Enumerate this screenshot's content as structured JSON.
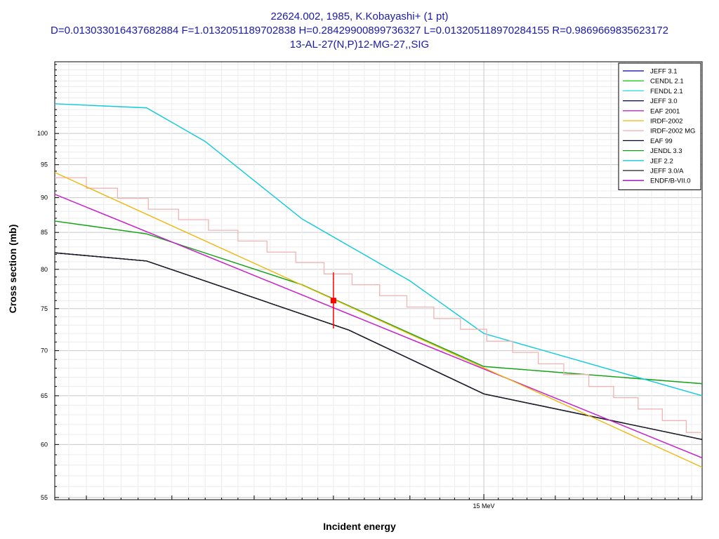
{
  "chart_data": {
    "type": "line",
    "title_lines": [
      "22624.002, 1985, K.Kobayashi+ (1 pt)",
      "D=0.013033016437682884 F=1.0132051189702838 H=0.28429900899736327 L=0.013205118970284155 R=0.9869669835623172",
      "13-AL-27(N,P)12-MG-27,,SIG"
    ],
    "xlabel": "Incident energy",
    "ylabel": "Cross section (mb)",
    "x_unit": "MeV",
    "x_scale": "log",
    "y_scale": "log",
    "xlim": [
      12.32,
      16.58
    ],
    "ylim": [
      54.8,
      112.5
    ],
    "y_ticks": [
      55,
      60,
      65,
      70,
      75,
      80,
      85,
      90,
      95,
      100
    ],
    "x_tick_labels": [
      {
        "x": 15.0,
        "label": "15 MeV"
      }
    ],
    "grid": true,
    "legend_position": "top-right",
    "series": [
      {
        "name": "JEFF 3.1",
        "color": "#0000a0",
        "x": [
          12.32,
          12.85,
          14.1,
          15.0,
          16.58
        ],
        "y": [
          82.2,
          81.1,
          72.4,
          65.2,
          60.5
        ]
      },
      {
        "name": "CENDL 2.1",
        "color": "#22c822",
        "x": [
          12.32,
          12.85,
          13.8,
          15.0,
          16.58
        ],
        "y": [
          86.6,
          84.8,
          78.0,
          68.2,
          66.3
        ]
      },
      {
        "name": "FENDL 2.1",
        "color": "#1ee6e6",
        "x": [
          12.32,
          12.85,
          13.2,
          13.8,
          14.5,
          15.0,
          16.58
        ],
        "y": [
          105.0,
          104.3,
          98.7,
          86.9,
          78.5,
          72.0,
          65.0
        ]
      },
      {
        "name": "JEFF 3.0",
        "color": "#000060",
        "x": [
          12.32,
          12.85,
          14.1,
          15.0,
          16.58
        ],
        "y": [
          82.2,
          81.1,
          72.4,
          65.2,
          60.5
        ]
      },
      {
        "name": "EAF 2001",
        "color": "#cc22cc",
        "x": [
          12.32,
          16.58
        ],
        "y": [
          90.5,
          58.7
        ]
      },
      {
        "name": "IRDF-2002",
        "color": "#f0b400",
        "x": [
          12.32,
          16.58
        ],
        "y": [
          93.8,
          57.8
        ]
      },
      {
        "name": "IRDF-2002 MG",
        "color": "#f0b4b4",
        "x": [
          12.32,
          12.5,
          12.68,
          12.86,
          13.04,
          13.22,
          13.4,
          13.58,
          13.76,
          13.94,
          14.12,
          14.3,
          14.48,
          14.66,
          14.84,
          15.02,
          15.2,
          15.38,
          15.56,
          15.74,
          15.92,
          16.1,
          16.28,
          16.46,
          16.58
        ],
        "y": [
          93.0,
          91.4,
          89.9,
          88.3,
          86.8,
          85.3,
          83.8,
          82.3,
          80.9,
          79.4,
          78.0,
          76.6,
          75.2,
          73.8,
          72.5,
          71.1,
          69.8,
          68.5,
          67.3,
          66.0,
          64.8,
          63.6,
          62.4,
          61.2,
          60.4
        ]
      },
      {
        "name": "EAF 99",
        "color": "#00003c",
        "x": [
          12.32,
          12.85,
          14.1,
          15.0,
          16.58
        ],
        "y": [
          82.2,
          81.1,
          72.4,
          65.2,
          60.5
        ]
      },
      {
        "name": "JENDL 3.3",
        "color": "#14a014",
        "x": [
          12.32,
          12.85,
          13.8,
          15.0,
          16.58
        ],
        "y": [
          86.6,
          84.8,
          78.0,
          68.2,
          66.3
        ]
      },
      {
        "name": "JEF 2.2",
        "color": "#14c8dc",
        "x": [
          12.32,
          12.85,
          13.2,
          13.8,
          14.5,
          15.0,
          16.58
        ],
        "y": [
          105.0,
          104.3,
          98.7,
          86.9,
          78.5,
          72.0,
          65.0
        ]
      },
      {
        "name": "JEFF 3.0/A",
        "color": "#202020",
        "x": [
          12.32,
          12.85,
          14.1,
          15.0,
          16.58
        ],
        "y": [
          82.2,
          81.1,
          72.4,
          65.2,
          60.5
        ]
      },
      {
        "name": "ENDF/B-VII.0",
        "color": "#a000c0",
        "x": [
          12.32,
          16.58
        ],
        "y": [
          90.5,
          58.7
        ]
      }
    ],
    "draw_order": [
      0,
      3,
      7,
      10,
      1,
      8,
      2,
      9,
      11,
      4,
      6,
      5
    ],
    "experimental_points": [
      {
        "x": 14.0,
        "y": 76.0,
        "y_err_low": 72.6,
        "y_err_high": 79.6,
        "color": "#ff0000"
      }
    ]
  }
}
